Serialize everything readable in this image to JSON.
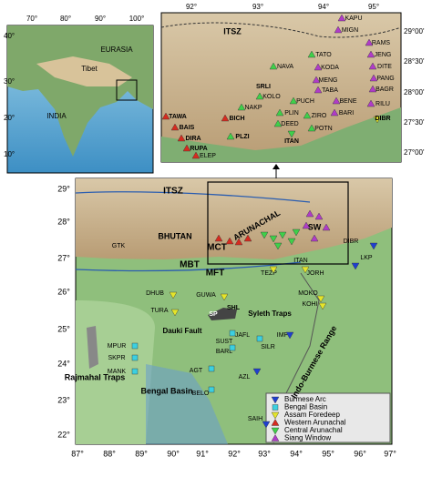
{
  "inset": {
    "lon_ticks": [
      "70°",
      "80°",
      "90°",
      "100°"
    ],
    "lat_ticks": [
      "40°",
      "30°",
      "20°",
      "10°"
    ],
    "labels": [
      "EURASIA",
      "Tibet",
      "INDIA"
    ]
  },
  "zoom": {
    "lon_ticks": [
      "92°",
      "93°",
      "94°",
      "95°"
    ],
    "lat_ticks": [
      "29°00'",
      "28°30'",
      "28°00'",
      "27°30'",
      "27°00'"
    ],
    "labels": [
      "ITSZ",
      "SRLI",
      "KAPU",
      "MIGN",
      "TATO",
      "RAMS",
      "JENG",
      "DITE",
      "NAVA",
      "KODA",
      "MENG",
      "TABA",
      "PANG",
      "BAGR",
      "KOLO",
      "BENE",
      "BARI",
      "RILU",
      "NAKP",
      "PUCH",
      "PLIN",
      "DEED",
      "ZIRO",
      "POTN",
      "TAWA",
      "BAIS",
      "BICH",
      "DIRA",
      "RUPA",
      "PLZI",
      "ITAN",
      "DIBR",
      "ELEP"
    ]
  },
  "main": {
    "lat_ticks": [
      "29°",
      "28°",
      "27°",
      "26°",
      "25°",
      "24°",
      "23°",
      "22°"
    ],
    "lon_ticks": [
      "87°",
      "88°",
      "89°",
      "90°",
      "91°",
      "92°",
      "93°",
      "94°",
      "95°",
      "96°",
      "97°"
    ],
    "labels": [
      "ITSZ",
      "SW",
      "ARUNACHAL",
      "BHUTAN",
      "GTK",
      "MCT",
      "MBT",
      "MFT",
      "TEZP",
      "ITAN",
      "DIBR",
      "LKP",
      "JORH",
      "DHUB",
      "GUWA",
      "MOKO",
      "KOHI",
      "SP",
      "SHL",
      "Syleth Traps",
      "TURA",
      "Dauki Fault",
      "MPUR",
      "SKPR",
      "MANK",
      "SUST",
      "JAFL",
      "BARL",
      "SILR",
      "IMP",
      "AGT",
      "AZL",
      "BELO",
      "Rajmahal Traps",
      "Bengal Basin",
      "Indo-Burmese Range",
      "SAIH"
    ]
  },
  "legend": {
    "items": [
      "Burmese Arc",
      "Bengal Basin",
      "Assam Foredeep",
      "Western Arunachal",
      "Central Arunachal",
      "Siang Window"
    ]
  }
}
